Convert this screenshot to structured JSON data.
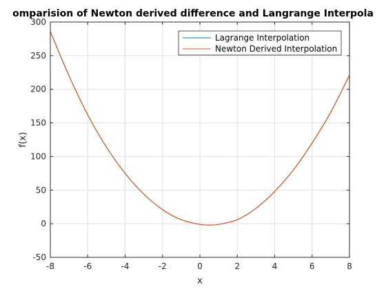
{
  "chart_data": {
    "type": "line",
    "title": "omparision of Newton derived difference and Langrange Interpola",
    "xlabel": "x",
    "ylabel": "f(x)",
    "xlim": [
      -8,
      8
    ],
    "ylim": [
      -50,
      300
    ],
    "xticks": [
      -8,
      -6,
      -4,
      -2,
      0,
      2,
      4,
      6,
      8
    ],
    "yticks": [
      -50,
      0,
      50,
      100,
      150,
      200,
      250,
      300
    ],
    "xtick_labels": [
      "-8",
      "-6",
      "-4",
      "-2",
      "0",
      "2",
      "4",
      "6",
      "8"
    ],
    "ytick_labels": [
      "-50",
      "0",
      "50",
      "100",
      "150",
      "200",
      "250",
      "300"
    ],
    "grid": true,
    "legend_position": "top-right",
    "x": [
      -8,
      -7,
      -6,
      -5,
      -4,
      -3,
      -2,
      -1,
      0,
      0.5,
      1,
      2,
      3,
      4,
      5,
      6,
      7,
      8
    ],
    "series": [
      {
        "name": "Lagrange Interpolation",
        "color": "#0072bd",
        "values": [
          286,
          220,
          162,
          114,
          75,
          44,
          21,
          6,
          -1,
          -2,
          -1,
          6,
          23,
          48,
          80,
          120,
          166,
          221
        ]
      },
      {
        "name": "Newton Derived Interpolation",
        "color": "#d95319",
        "values": [
          286,
          220,
          162,
          114,
          75,
          44,
          21,
          6,
          -1,
          -2,
          -1,
          6,
          23,
          48,
          80,
          120,
          166,
          221
        ]
      }
    ]
  }
}
